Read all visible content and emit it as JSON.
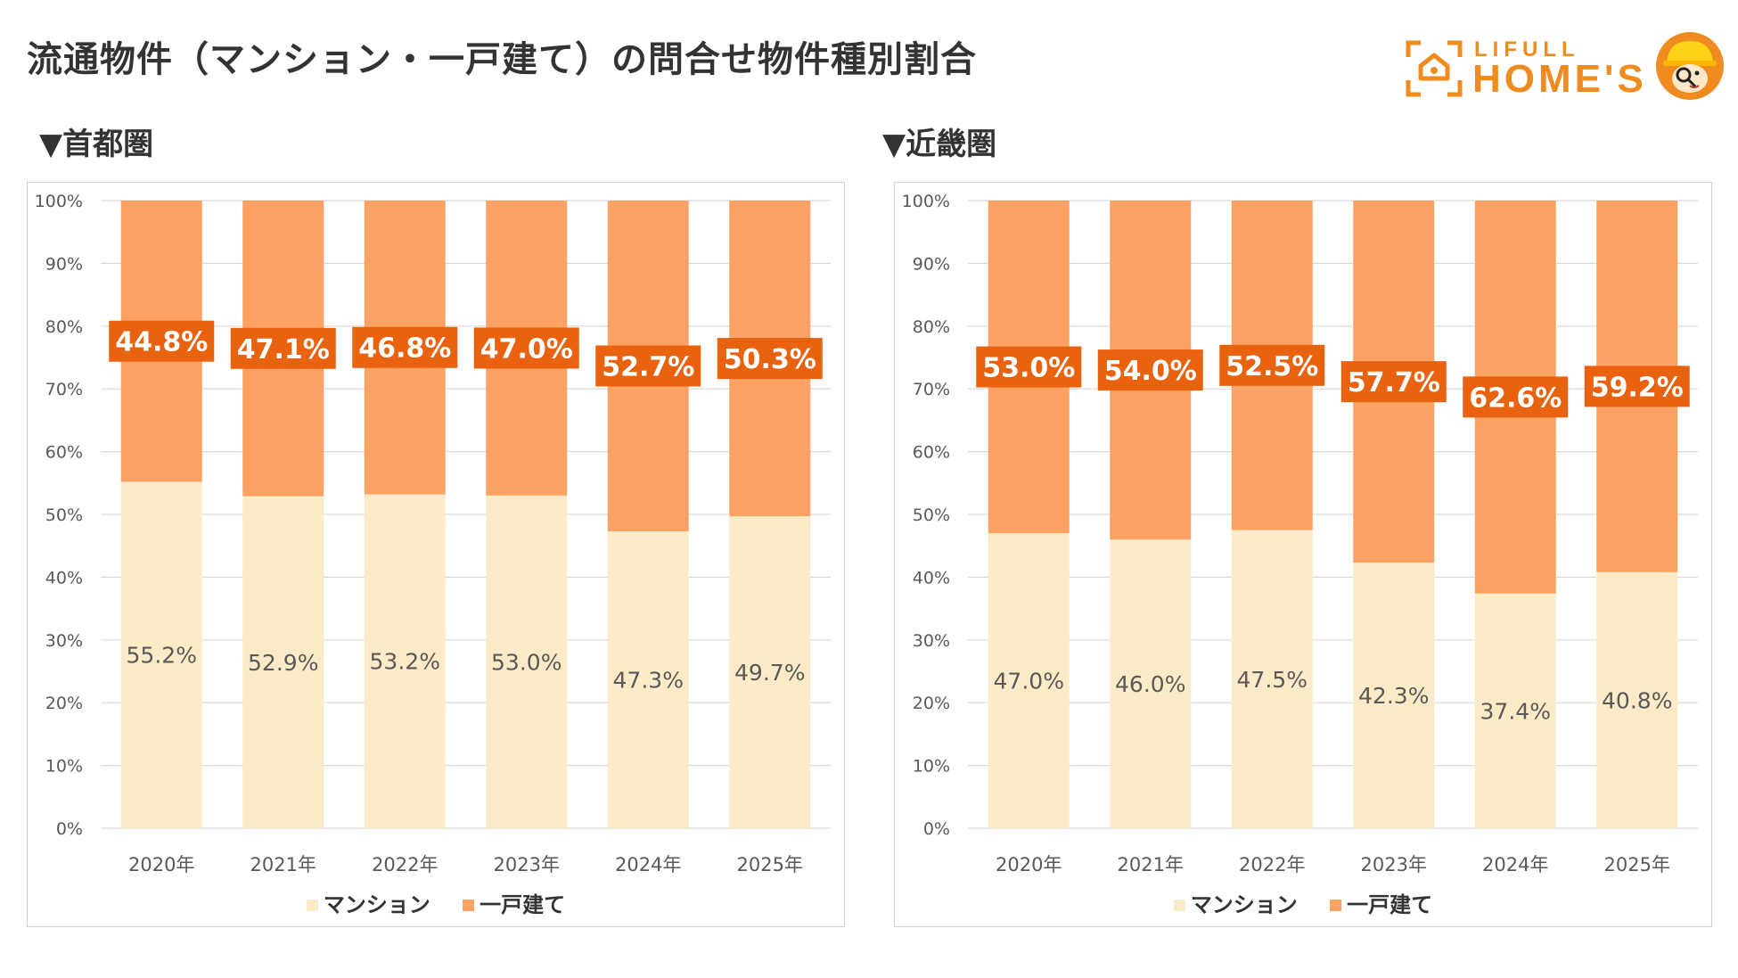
{
  "title": "流通物件（マンション・一戸建て）の問合せ物件種別割合",
  "logo": {
    "brand_small": "LIFULL",
    "brand_big": "HOME'S"
  },
  "colors": {
    "mansion": "#fdebc8",
    "house": "#fba264",
    "label_bg": "#e8620f",
    "grid": "#d9d9d9"
  },
  "chart_data": [
    {
      "type": "bar",
      "stacked": true,
      "title": "▼首都圏",
      "categories": [
        "2020年",
        "2021年",
        "2022年",
        "2023年",
        "2024年",
        "2025年"
      ],
      "series": [
        {
          "name": "マンション",
          "values": [
            55.2,
            52.9,
            53.2,
            53.0,
            47.3,
            49.7
          ]
        },
        {
          "name": "一戸建て",
          "values": [
            44.8,
            47.1,
            46.8,
            47.0,
            52.7,
            50.3
          ]
        }
      ],
      "labels": {
        "mansion": [
          "55.2%",
          "52.9%",
          "53.2%",
          "53.0%",
          "47.3%",
          "49.7%"
        ],
        "house": [
          "44.8%",
          "47.1%",
          "46.8%",
          "47.0%",
          "52.7%",
          "50.3%"
        ]
      },
      "yticks": [
        "0%",
        "10%",
        "20%",
        "30%",
        "40%",
        "50%",
        "60%",
        "70%",
        "80%",
        "90%",
        "100%"
      ],
      "ylim": [
        0,
        100
      ],
      "legend": [
        "マンション",
        "一戸建て"
      ]
    },
    {
      "type": "bar",
      "stacked": true,
      "title": "▼近畿圏",
      "categories": [
        "2020年",
        "2021年",
        "2022年",
        "2023年",
        "2024年",
        "2025年"
      ],
      "series": [
        {
          "name": "マンション",
          "values": [
            47.0,
            46.0,
            47.5,
            42.3,
            37.4,
            40.8
          ]
        },
        {
          "name": "一戸建て",
          "values": [
            53.0,
            54.0,
            52.5,
            57.7,
            62.6,
            59.2
          ]
        }
      ],
      "labels": {
        "mansion": [
          "47.0%",
          "46.0%",
          "47.5%",
          "42.3%",
          "37.4%",
          "40.8%"
        ],
        "house": [
          "53.0%",
          "54.0%",
          "52.5%",
          "57.7%",
          "62.6%",
          "59.2%"
        ]
      },
      "yticks": [
        "0%",
        "10%",
        "20%",
        "30%",
        "40%",
        "50%",
        "60%",
        "70%",
        "80%",
        "90%",
        "100%"
      ],
      "ylim": [
        0,
        100
      ],
      "legend": [
        "マンション",
        "一戸建て"
      ]
    }
  ]
}
